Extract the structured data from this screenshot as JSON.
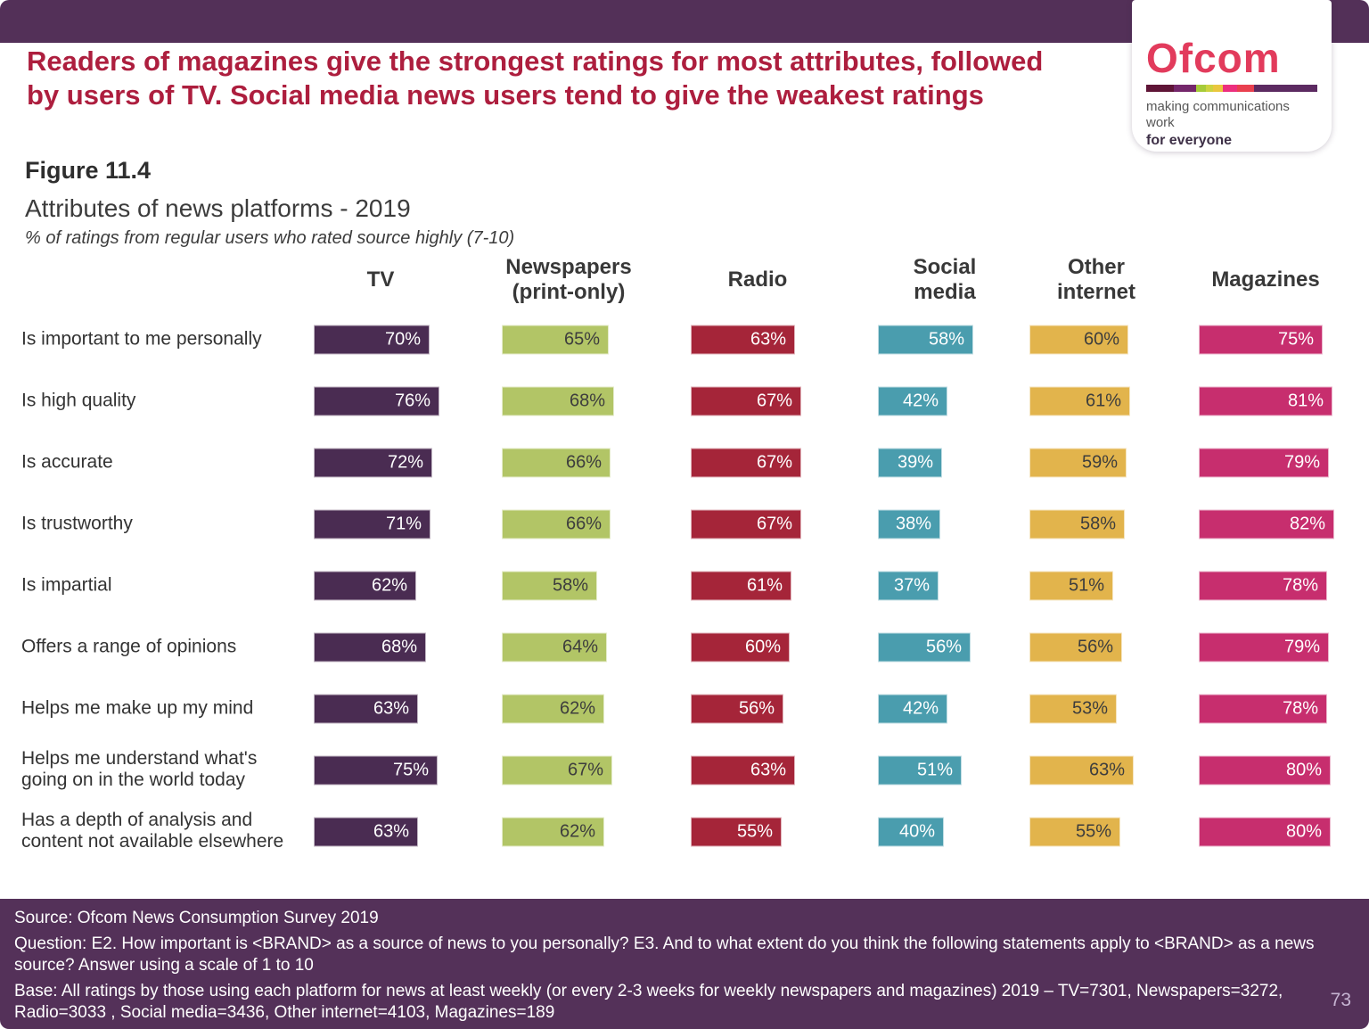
{
  "header": {
    "title": "Readers of magazines give the strongest ratings for most attributes, followed by users of TV.  Social media news users tend to give the weakest ratings",
    "figure_label": "Figure 11.4"
  },
  "logo": {
    "wordmark": "Ofcom",
    "tagline_line1": "making communications work",
    "tagline_line2": "for everyone",
    "stripe_colors": [
      "#5f1537",
      "#74276b",
      "#a6cb39",
      "#cdd33f",
      "#eac73e",
      "#ec2f7e",
      "#e9404f",
      "#5c2a61"
    ]
  },
  "chart_data": {
    "type": "bar",
    "title": "Attributes of news platforms - 2019",
    "subtitle": "% of ratings from regular users who rated source highly (7-10)",
    "unit": "%",
    "value_range": [
      0,
      100
    ],
    "orientation": "horizontal",
    "categories": [
      "Is important to me personally",
      "Is high quality",
      "Is accurate",
      "Is trustworthy",
      "Is impartial",
      "Offers a range of opinions",
      "Helps me make up my mind",
      "Helps me understand what's going on in the world today",
      "Has a depth of analysis and content not available elsewhere"
    ],
    "series": [
      {
        "name": "TV",
        "header_label": "TV",
        "color": "#4a2c52",
        "label_color": "#ffffff",
        "values": [
          70,
          76,
          72,
          71,
          62,
          68,
          63,
          75,
          63
        ]
      },
      {
        "name": "Newspapers (print-only)",
        "header_label": "Newspapers\n(print-only)",
        "color": "#b2c566",
        "label_color": "#3d3d3d",
        "values": [
          65,
          68,
          66,
          66,
          58,
          64,
          62,
          67,
          62
        ]
      },
      {
        "name": "Radio",
        "header_label": "Radio",
        "color": "#a52539",
        "label_color": "#ffffff",
        "values": [
          63,
          67,
          67,
          67,
          61,
          60,
          56,
          63,
          55
        ]
      },
      {
        "name": "Social media",
        "header_label": "Social\nmedia",
        "color": "#4a9dae",
        "label_color": "#ffffff",
        "values": [
          58,
          42,
          39,
          38,
          37,
          56,
          42,
          51,
          40
        ]
      },
      {
        "name": "Other internet",
        "header_label": "Other\ninternet",
        "color": "#e2b44c",
        "label_color": "#3d3d3d",
        "values": [
          60,
          61,
          59,
          58,
          51,
          56,
          53,
          63,
          55
        ]
      },
      {
        "name": "Magazines",
        "header_label": "Magazines",
        "color": "#c72e6e",
        "label_color": "#ffffff",
        "values": [
          75,
          81,
          79,
          82,
          78,
          79,
          78,
          80,
          80
        ]
      }
    ]
  },
  "footer": {
    "source": "Source: Ofcom News Consumption Survey 2019",
    "question": "Question: E2. How important is <BRAND> as a source of news to you personally?  E3. And to what extent do you think the following statements apply to <BRAND> as a news source? Answer using a scale of 1 to 10",
    "base": "Base: All ratings by those using each platform for news at least weekly (or every 2-3 weeks for weekly newspapers and magazines) 2019 – TV=7301, Newspapers=3272, Radio=3033 , Social media=3436, Other internet=4103, Magazines=189",
    "page_number": "73"
  }
}
